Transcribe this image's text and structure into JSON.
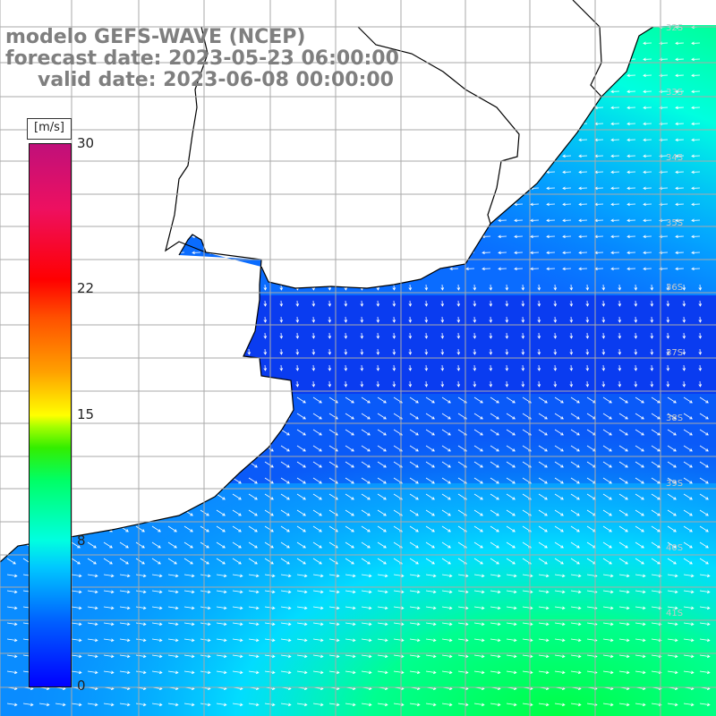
{
  "title": {
    "line1": "modelo GEFS-WAVE (NCEP)",
    "line2": "forecast date: 2023-05-23 06:00:00",
    "line3": "valid date: 2023-06-08 00:00:00"
  },
  "colorbar": {
    "unit": "[m/s]",
    "ticks": [
      {
        "value": 30,
        "label": "30"
      },
      {
        "value": 22,
        "label": "22"
      },
      {
        "value": 15,
        "label": "15"
      },
      {
        "value": 8,
        "label": "8"
      },
      {
        "value": 0,
        "label": "0"
      }
    ],
    "min": 0,
    "max": 30
  },
  "latitude_labels": [
    "32S",
    "33S",
    "34S",
    "35S",
    "36S",
    "37S",
    "38S",
    "39S",
    "40S",
    "41S"
  ],
  "colors": {
    "land": "#ffffff",
    "grid": "#aaaaaa",
    "coast": "#000000",
    "title": "#7f7f7f",
    "arrows": "#ffffff"
  }
}
